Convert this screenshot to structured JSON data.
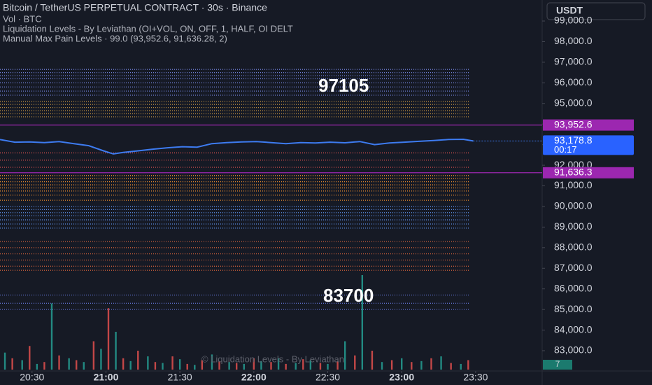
{
  "chart_data": {
    "type": "line",
    "title": "Bitcoin / TetherUS PERPETUAL CONTRACT · 30s · Binance",
    "subtitles": [
      "Vol · BTC",
      "Liquidation Levels - By Leviathan (OI+VOL, ON, OFF, 1, HALF, OI DELT",
      "Manual Max Pain Levels · 99.0 (93,952.6, 91,636.28, 2)"
    ],
    "currency": "USDT",
    "watermark": "© Liquidation Levels - By Leviathan",
    "annotations": [
      "97105",
      "83700"
    ],
    "badge": "7",
    "xlim": [
      1217,
      1437
    ],
    "xticks": [
      {
        "value": 1230,
        "label": "20:30"
      },
      {
        "value": 1260,
        "label": "21:00"
      },
      {
        "value": 1290,
        "label": "21:30"
      },
      {
        "value": 1320,
        "label": "22:00"
      },
      {
        "value": 1350,
        "label": "22:30"
      },
      {
        "value": 1380,
        "label": "23:00"
      },
      {
        "value": 1410,
        "label": "23:30"
      }
    ],
    "ylim": [
      82015,
      100020
    ],
    "yticks": [
      {
        "value": 83000,
        "label": "83,000.0"
      },
      {
        "value": 84000,
        "label": "84,000.0"
      },
      {
        "value": 85000,
        "label": "85,000.0"
      },
      {
        "value": 86000,
        "label": "86,000.0"
      },
      {
        "value": 87000,
        "label": "87,000.0"
      },
      {
        "value": 88000,
        "label": "88,000.0"
      },
      {
        "value": 89000,
        "label": "89,000.0"
      },
      {
        "value": 90000,
        "label": "90,000.0"
      },
      {
        "value": 91000,
        "label": "91,000.0"
      },
      {
        "value": 92000,
        "label": "92,000.0"
      },
      {
        "value": 93000,
        "label": "93,000.0"
      },
      {
        "value": 94000,
        "label": "94,000.0"
      },
      {
        "value": 95000,
        "label": "95,000.0"
      },
      {
        "value": 96000,
        "label": "96,000.0"
      },
      {
        "value": 97000,
        "label": "97,000.0"
      },
      {
        "value": 98000,
        "label": "98,000.0"
      },
      {
        "value": 99000,
        "label": "99,000.0"
      }
    ],
    "series": [
      {
        "name": "BTCUSDT",
        "color": "#3d7bf0",
        "x": [
          1217,
          1223,
          1229,
          1235,
          1241,
          1247,
          1253,
          1259,
          1263,
          1267,
          1273,
          1279,
          1285,
          1291,
          1297,
          1303,
          1309,
          1315,
          1321,
          1327,
          1333,
          1339,
          1345,
          1351,
          1357,
          1363,
          1369,
          1375,
          1381,
          1387,
          1393,
          1399,
          1405,
          1409
        ],
        "values": [
          93250,
          93120,
          93130,
          93100,
          93150,
          93050,
          92950,
          92700,
          92550,
          92620,
          92700,
          92780,
          92850,
          92900,
          92880,
          93050,
          93100,
          93130,
          93150,
          93100,
          93050,
          93100,
          93080,
          93120,
          93090,
          93150,
          93000,
          93080,
          93120,
          93160,
          93200,
          93250,
          93260,
          93178.8
        ]
      }
    ],
    "last_value_label": "93,178.8",
    "countdown": "00:17",
    "max_pain": {
      "color": "#9c27b0",
      "values": [
        93952.6,
        91636.28
      ],
      "value_labels": [
        "93,952.6",
        "91,636.3"
      ]
    },
    "liquidation_levels": [
      {
        "color": "#6f7fd6",
        "values": [
          96650,
          96500,
          96350,
          96200,
          96000,
          95800,
          95600,
          95400
        ]
      },
      {
        "color": "#b98a3e",
        "values": [
          95100,
          94950,
          94800,
          94650,
          94500,
          94350
        ]
      },
      {
        "color": "#e0524f",
        "values": [
          92600,
          92250,
          91900
        ]
      },
      {
        "color": "#f5902a",
        "values": [
          91500,
          91350,
          91200,
          91050,
          90900,
          90750,
          90550,
          90300
        ]
      },
      {
        "color": "#5b8ee8",
        "values": [
          90000,
          89850,
          89700,
          89550,
          89350,
          89150,
          88950
        ]
      },
      {
        "color": "#d0603a",
        "values": [
          88300,
          88000,
          87700,
          87400,
          87100,
          86900
        ]
      },
      {
        "color": "#5b6cc7",
        "values": [
          85700,
          85300,
          85000
        ]
      }
    ],
    "volume_up": {
      "color": "#26a69a",
      "x": [
        1219,
        1226,
        1232,
        1238,
        1245,
        1251,
        1258,
        1264,
        1270,
        1277,
        1283,
        1290,
        1296,
        1303,
        1310,
        1316,
        1323,
        1330,
        1337,
        1343,
        1350,
        1357,
        1364,
        1372,
        1380,
        1388,
        1396,
        1404
      ],
      "values": [
        18,
        10,
        6,
        70,
        12,
        8,
        22,
        40,
        9,
        14,
        7,
        11,
        5,
        16,
        8,
        6,
        9,
        12,
        7,
        10,
        6,
        30,
        100,
        8,
        12,
        9,
        14,
        6
      ]
    },
    "volume_down": {
      "color": "#ef5350",
      "x": [
        1222,
        1229,
        1235,
        1241,
        1248,
        1255,
        1261,
        1267,
        1273,
        1280,
        1287,
        1293,
        1299,
        1306,
        1313,
        1320,
        1327,
        1333,
        1340,
        1347,
        1354,
        1361,
        1368,
        1376,
        1384,
        1392,
        1400,
        1407
      ],
      "values": [
        12,
        25,
        8,
        15,
        10,
        30,
        65,
        12,
        20,
        8,
        14,
        6,
        10,
        9,
        7,
        12,
        8,
        6,
        11,
        7,
        9,
        15,
        20,
        10,
        8,
        12,
        7,
        10
      ]
    }
  }
}
